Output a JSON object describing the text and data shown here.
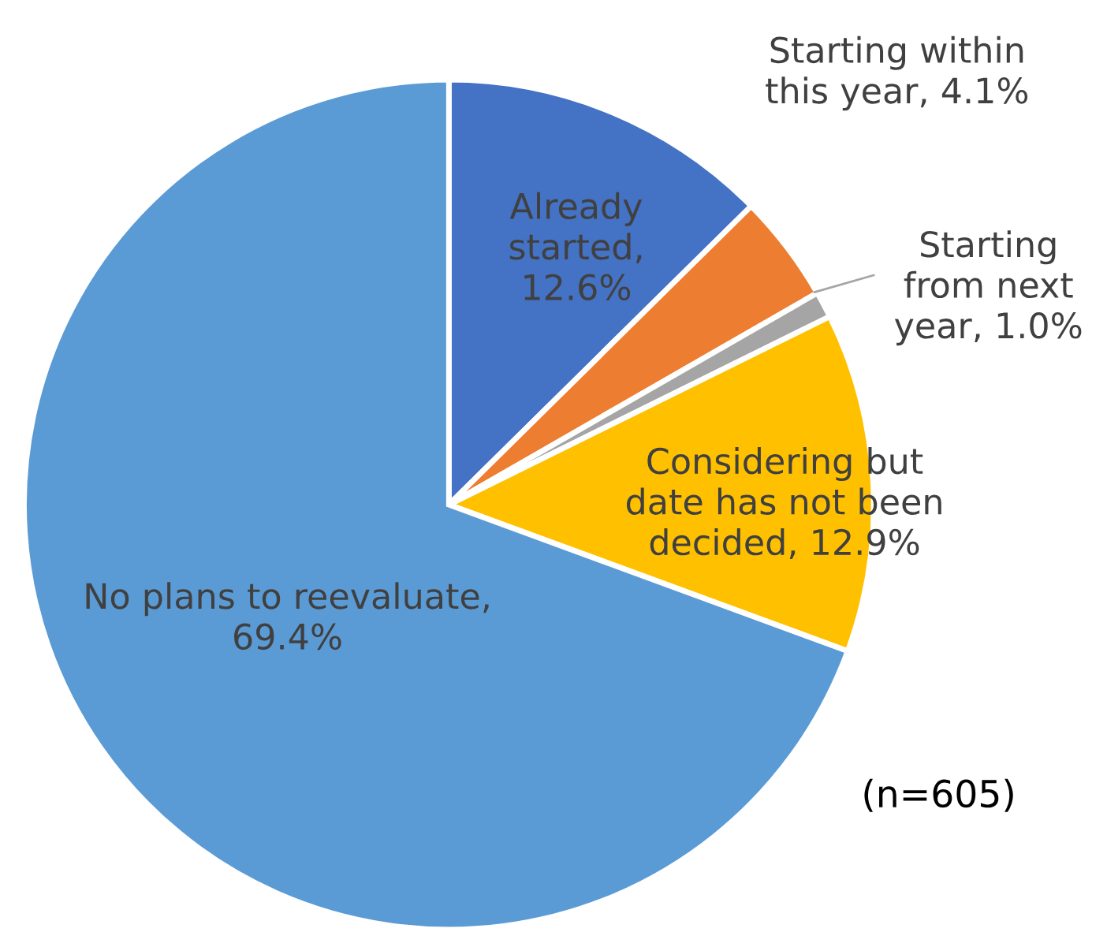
{
  "chart_data": {
    "type": "pie",
    "categories": [
      "Already started",
      "Starting within this year",
      "Starting from next year",
      "Considering but date has not been decided",
      "No plans to reevaluate"
    ],
    "values": [
      12.6,
      4.1,
      1.0,
      12.9,
      69.4
    ],
    "colors": [
      "#4472c4",
      "#ed7d31",
      "#a5a5a5",
      "#ffc000",
      "#5b9bd5"
    ],
    "value_labels": [
      ", 12.6%",
      ", 4.1%",
      ", 1.0%",
      ", 12.9%",
      ", 69.4%"
    ],
    "annotations": [
      "(n=605)"
    ]
  }
}
